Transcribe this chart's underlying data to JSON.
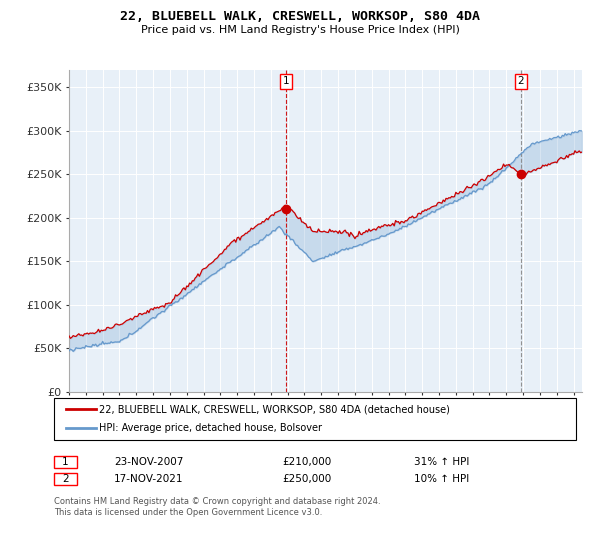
{
  "title": "22, BLUEBELL WALK, CRESWELL, WORKSOP, S80 4DA",
  "subtitle": "Price paid vs. HM Land Registry's House Price Index (HPI)",
  "ylabel_ticks": [
    "£0",
    "£50K",
    "£100K",
    "£150K",
    "£200K",
    "£250K",
    "£300K",
    "£350K"
  ],
  "ytick_values": [
    0,
    50000,
    100000,
    150000,
    200000,
    250000,
    300000,
    350000
  ],
  "ylim": [
    0,
    370000
  ],
  "xlim_start": 1995.0,
  "xlim_end": 2025.5,
  "sale1_x": 2007.896,
  "sale1_y": 210000,
  "sale2_x": 2021.877,
  "sale2_y": 250000,
  "sale1_label": "23-NOV-2007",
  "sale1_price": "£210,000",
  "sale1_hpi": "31% ↑ HPI",
  "sale2_label": "17-NOV-2021",
  "sale2_price": "£250,000",
  "sale2_hpi": "10% ↑ HPI",
  "legend_line1": "22, BLUEBELL WALK, CRESWELL, WORKSOP, S80 4DA (detached house)",
  "legend_line2": "HPI: Average price, detached house, Bolsover",
  "footer": "Contains HM Land Registry data © Crown copyright and database right 2024.\nThis data is licensed under the Open Government Licence v3.0.",
  "price_color": "#cc0000",
  "hpi_color": "#6699cc",
  "fill_color": "#ddeeff",
  "bg_color": "#ffffff",
  "grid_color": "#cccccc",
  "chart_bg": "#e8f0f8"
}
